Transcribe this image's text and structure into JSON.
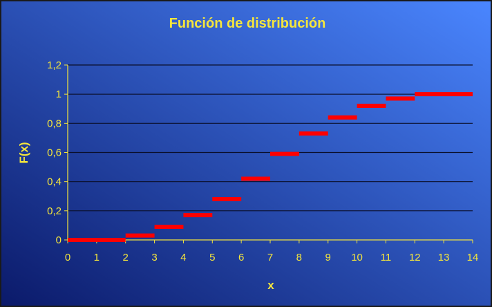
{
  "colors": {
    "background_light": "#4a86ff",
    "background_dark": "#0b1a6a",
    "text": "#f5e63c",
    "step": "#ff0000",
    "grid": "#0b0f2a"
  },
  "chart_data": {
    "type": "line",
    "title": "Función de distribución",
    "xlabel": "x",
    "ylabel": "F(x)",
    "xlim": [
      0,
      14
    ],
    "ylim": [
      0,
      1.2
    ],
    "x_ticks": [
      "0",
      "1",
      "2",
      "3",
      "4",
      "5",
      "6",
      "7",
      "8",
      "9",
      "10",
      "11",
      "12",
      "13",
      "14"
    ],
    "y_ticks": [
      "0",
      "0,2",
      "0,4",
      "0,6",
      "0,8",
      "1",
      "1,2"
    ],
    "grid": "horizontal",
    "legend": "none",
    "series": [
      {
        "style": "step",
        "segments": [
          {
            "x_start": 0,
            "x_end": 2,
            "y": 0.0
          },
          {
            "x_start": 2,
            "x_end": 3,
            "y": 0.03
          },
          {
            "x_start": 3,
            "x_end": 4,
            "y": 0.09
          },
          {
            "x_start": 4,
            "x_end": 5,
            "y": 0.17
          },
          {
            "x_start": 5,
            "x_end": 6,
            "y": 0.28
          },
          {
            "x_start": 6,
            "x_end": 7,
            "y": 0.42
          },
          {
            "x_start": 7,
            "x_end": 8,
            "y": 0.59
          },
          {
            "x_start": 8,
            "x_end": 9,
            "y": 0.73
          },
          {
            "x_start": 9,
            "x_end": 10,
            "y": 0.84
          },
          {
            "x_start": 10,
            "x_end": 11,
            "y": 0.92
          },
          {
            "x_start": 11,
            "x_end": 12,
            "y": 0.97
          },
          {
            "x_start": 12,
            "x_end": 14,
            "y": 1.0
          }
        ]
      }
    ]
  }
}
